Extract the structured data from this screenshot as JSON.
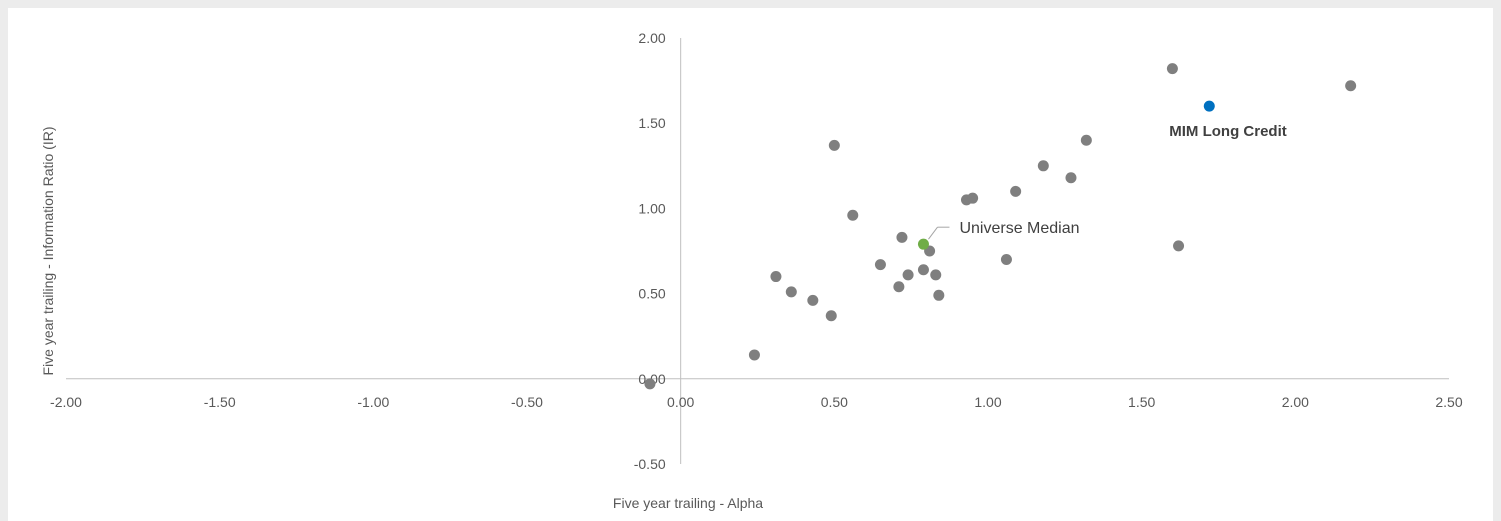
{
  "chart_data": {
    "type": "scatter",
    "title": "",
    "xlabel": "Five year trailing - Alpha",
    "ylabel": "Five year trailing - Information Ratio (IR)",
    "xlim": [
      -2.0,
      2.5
    ],
    "ylim": [
      -0.5,
      2.0
    ],
    "x_ticks": [
      "-2.00",
      "-1.50",
      "-1.00",
      "-0.50",
      "0.00",
      "0.50",
      "1.00",
      "1.50",
      "2.00",
      "2.50"
    ],
    "y_ticks": [
      "2.00",
      "1.50",
      "1.00",
      "0.50",
      "0.00",
      "-0.50"
    ],
    "grid": false,
    "legend": "none",
    "colors": {
      "universe": "#7f7f7f",
      "median": "#70ad47",
      "highlight": "#0070c0",
      "axis": "#bfbfbf"
    },
    "series": [
      {
        "role": "universe",
        "points": [
          {
            "x": -0.1,
            "y": -0.03
          },
          {
            "x": 0.24,
            "y": 0.14
          },
          {
            "x": 0.31,
            "y": 0.6
          },
          {
            "x": 0.36,
            "y": 0.51
          },
          {
            "x": 0.43,
            "y": 0.46
          },
          {
            "x": 0.49,
            "y": 0.37
          },
          {
            "x": 0.5,
            "y": 1.37
          },
          {
            "x": 0.56,
            "y": 0.96
          },
          {
            "x": 0.65,
            "y": 0.67
          },
          {
            "x": 0.71,
            "y": 0.54
          },
          {
            "x": 0.72,
            "y": 0.83
          },
          {
            "x": 0.74,
            "y": 0.61
          },
          {
            "x": 0.79,
            "y": 0.64
          },
          {
            "x": 0.81,
            "y": 0.75
          },
          {
            "x": 0.83,
            "y": 0.61
          },
          {
            "x": 0.84,
            "y": 0.49
          },
          {
            "x": 0.93,
            "y": 1.05
          },
          {
            "x": 0.95,
            "y": 1.06
          },
          {
            "x": 1.06,
            "y": 0.7
          },
          {
            "x": 1.09,
            "y": 1.1
          },
          {
            "x": 1.18,
            "y": 1.25
          },
          {
            "x": 1.27,
            "y": 1.18
          },
          {
            "x": 1.32,
            "y": 1.4
          },
          {
            "x": 1.6,
            "y": 1.82
          },
          {
            "x": 1.62,
            "y": 0.78
          },
          {
            "x": 2.18,
            "y": 1.72
          }
        ]
      },
      {
        "role": "median",
        "label": "Universe Median",
        "points": [
          {
            "x": 0.79,
            "y": 0.79
          }
        ]
      },
      {
        "role": "highlight",
        "label": "MIM Long Credit",
        "points": [
          {
            "x": 1.72,
            "y": 1.6
          }
        ]
      }
    ]
  }
}
